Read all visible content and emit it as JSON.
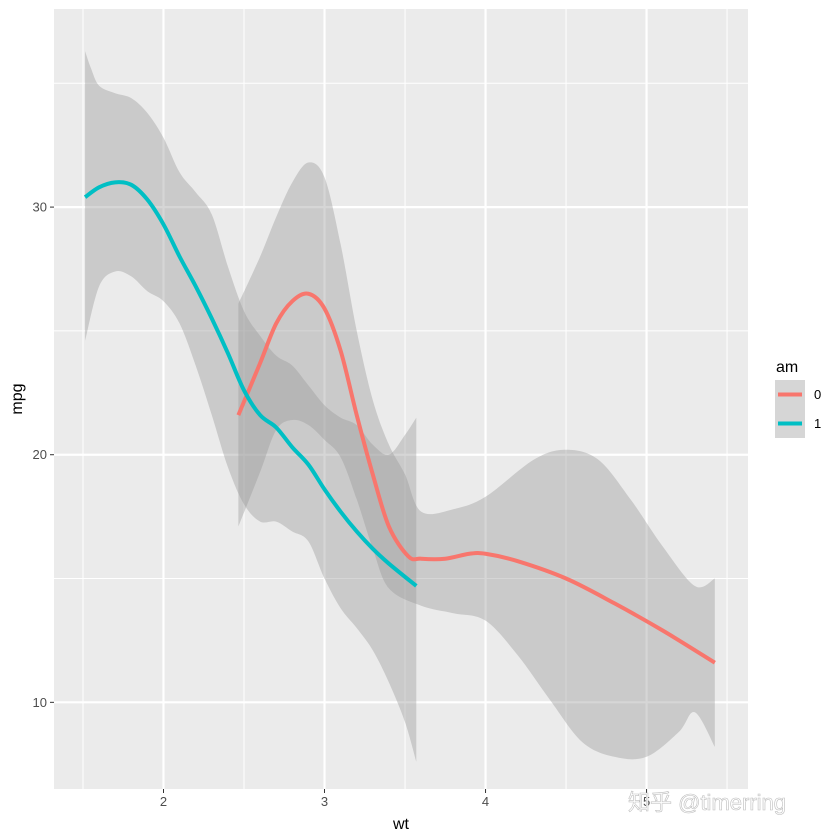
{
  "chart_data": {
    "type": "line",
    "subtype": "loess smooth with confidence bands",
    "xlabel": "wt",
    "ylabel": "mpg",
    "xlim": [
      1.32,
      5.63
    ],
    "ylim": [
      6.5,
      38.0
    ],
    "x_ticks": [
      2,
      3,
      4,
      5
    ],
    "x_tick_labels": [
      "2",
      "3",
      "4",
      "5"
    ],
    "y_ticks": [
      10,
      20,
      30
    ],
    "y_tick_labels": [
      "10",
      "20",
      "30"
    ],
    "grid": true,
    "legend": {
      "title": "am",
      "position": "right"
    },
    "series": [
      {
        "name": "0",
        "color": "#F8766D",
        "points": [
          [
            2.465,
            21.6
          ],
          [
            2.6,
            23.7
          ],
          [
            2.7,
            25.3
          ],
          [
            2.8,
            26.2
          ],
          [
            2.9,
            26.5
          ],
          [
            3.0,
            25.9
          ],
          [
            3.1,
            24.2
          ],
          [
            3.2,
            21.6
          ],
          [
            3.3,
            19.2
          ],
          [
            3.4,
            17.1
          ],
          [
            3.52,
            15.9
          ],
          [
            3.6,
            15.8
          ],
          [
            3.75,
            15.8
          ],
          [
            3.9,
            16.0
          ],
          [
            4.0,
            16.0
          ],
          [
            4.2,
            15.7
          ],
          [
            4.5,
            15.0
          ],
          [
            4.8,
            14.0
          ],
          [
            5.1,
            12.9
          ],
          [
            5.424,
            11.6
          ]
        ],
        "ci_upper": [
          [
            2.465,
            26.1
          ],
          [
            2.6,
            28.0
          ],
          [
            2.7,
            29.6
          ],
          [
            2.8,
            31.0
          ],
          [
            2.9,
            31.8
          ],
          [
            3.0,
            31.2
          ],
          [
            3.1,
            28.5
          ],
          [
            3.2,
            25.0
          ],
          [
            3.3,
            22.2
          ],
          [
            3.4,
            20.4
          ],
          [
            3.5,
            19.2
          ],
          [
            3.6,
            17.7
          ],
          [
            3.8,
            17.8
          ],
          [
            4.0,
            18.3
          ],
          [
            4.3,
            19.8
          ],
          [
            4.5,
            20.2
          ],
          [
            4.7,
            19.8
          ],
          [
            4.9,
            18.2
          ],
          [
            5.1,
            16.3
          ],
          [
            5.3,
            14.7
          ],
          [
            5.424,
            15.0
          ]
        ],
        "ci_lower": [
          [
            2.465,
            17.1
          ],
          [
            2.6,
            19.3
          ],
          [
            2.7,
            21.0
          ],
          [
            2.8,
            21.4
          ],
          [
            2.9,
            21.2
          ],
          [
            3.0,
            20.6
          ],
          [
            3.1,
            19.9
          ],
          [
            3.2,
            18.2
          ],
          [
            3.3,
            16.2
          ],
          [
            3.4,
            14.6
          ],
          [
            3.6,
            13.9
          ],
          [
            3.8,
            13.6
          ],
          [
            4.0,
            13.3
          ],
          [
            4.2,
            11.9
          ],
          [
            4.4,
            10.1
          ],
          [
            4.6,
            8.4
          ],
          [
            4.8,
            7.8
          ],
          [
            5.0,
            7.8
          ],
          [
            5.2,
            8.8
          ],
          [
            5.3,
            9.6
          ],
          [
            5.424,
            8.2
          ]
        ]
      },
      {
        "name": "1",
        "color": "#00BFC4",
        "points": [
          [
            1.513,
            30.4
          ],
          [
            1.6,
            30.8
          ],
          [
            1.7,
            31.0
          ],
          [
            1.8,
            30.9
          ],
          [
            1.9,
            30.3
          ],
          [
            2.0,
            29.3
          ],
          [
            2.1,
            28.0
          ],
          [
            2.2,
            26.8
          ],
          [
            2.3,
            25.5
          ],
          [
            2.4,
            24.1
          ],
          [
            2.5,
            22.6
          ],
          [
            2.6,
            21.6
          ],
          [
            2.7,
            21.1
          ],
          [
            2.8,
            20.3
          ],
          [
            2.9,
            19.6
          ],
          [
            3.0,
            18.6
          ],
          [
            3.1,
            17.7
          ],
          [
            3.2,
            16.9
          ],
          [
            3.3,
            16.2
          ],
          [
            3.4,
            15.6
          ],
          [
            3.57,
            14.7
          ]
        ],
        "ci_upper": [
          [
            1.513,
            36.3
          ],
          [
            1.55,
            35.6
          ],
          [
            1.6,
            34.9
          ],
          [
            1.7,
            34.6
          ],
          [
            1.8,
            34.4
          ],
          [
            1.9,
            33.8
          ],
          [
            2.0,
            32.8
          ],
          [
            2.1,
            31.4
          ],
          [
            2.2,
            30.6
          ],
          [
            2.3,
            29.7
          ],
          [
            2.4,
            27.6
          ],
          [
            2.5,
            25.8
          ],
          [
            2.6,
            24.8
          ],
          [
            2.7,
            24.0
          ],
          [
            2.8,
            23.6
          ],
          [
            2.9,
            22.8
          ],
          [
            3.0,
            22.0
          ],
          [
            3.1,
            21.5
          ],
          [
            3.2,
            21.2
          ],
          [
            3.3,
            20.4
          ],
          [
            3.4,
            20.0
          ],
          [
            3.5,
            20.8
          ],
          [
            3.57,
            21.5
          ]
        ],
        "ci_lower": [
          [
            1.513,
            24.6
          ],
          [
            1.6,
            26.8
          ],
          [
            1.7,
            27.4
          ],
          [
            1.8,
            27.2
          ],
          [
            1.9,
            26.6
          ],
          [
            2.0,
            26.2
          ],
          [
            2.1,
            25.3
          ],
          [
            2.2,
            23.6
          ],
          [
            2.3,
            21.6
          ],
          [
            2.4,
            19.5
          ],
          [
            2.5,
            18.0
          ],
          [
            2.6,
            17.3
          ],
          [
            2.7,
            17.3
          ],
          [
            2.8,
            16.9
          ],
          [
            2.9,
            16.5
          ],
          [
            3.0,
            15.0
          ],
          [
            3.1,
            13.8
          ],
          [
            3.2,
            13.0
          ],
          [
            3.3,
            12.1
          ],
          [
            3.4,
            10.8
          ],
          [
            3.5,
            9.2
          ],
          [
            3.57,
            7.6
          ]
        ]
      }
    ],
    "ribbon_color": "#999999",
    "panel_background": "#EBEBEB",
    "grid_color": "#FFFFFF"
  },
  "watermark": "知乎 @timerring"
}
